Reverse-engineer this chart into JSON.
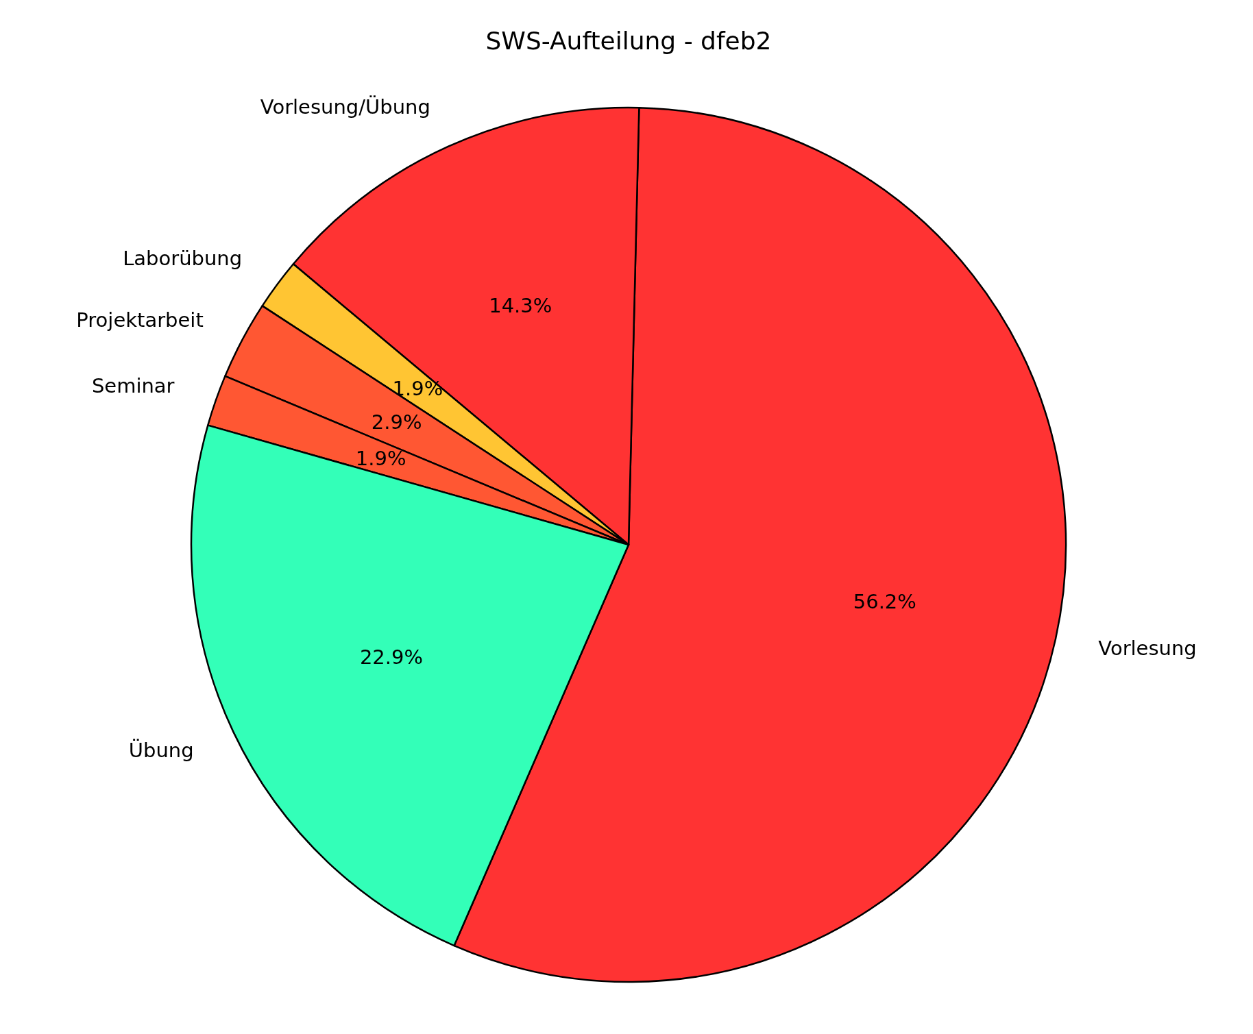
{
  "chart_data": {
    "type": "pie",
    "title": "SWS-Aufteilung - dfeb2",
    "categories": [
      "Vorlesung",
      "Vorlesung/Übung",
      "Laborübung",
      "Projektarbeit",
      "Seminar",
      "Übung"
    ],
    "values": [
      56.2,
      14.3,
      1.9,
      2.9,
      1.9,
      22.9
    ],
    "colors": [
      "#ff3333",
      "#ff3333",
      "#ffc533",
      "#ff5733",
      "#ff5733",
      "#33ffb8"
    ],
    "value_labels": [
      "56.2%",
      "14.3%",
      "1.9%",
      "2.9%",
      "1.9%",
      "22.9%"
    ]
  }
}
